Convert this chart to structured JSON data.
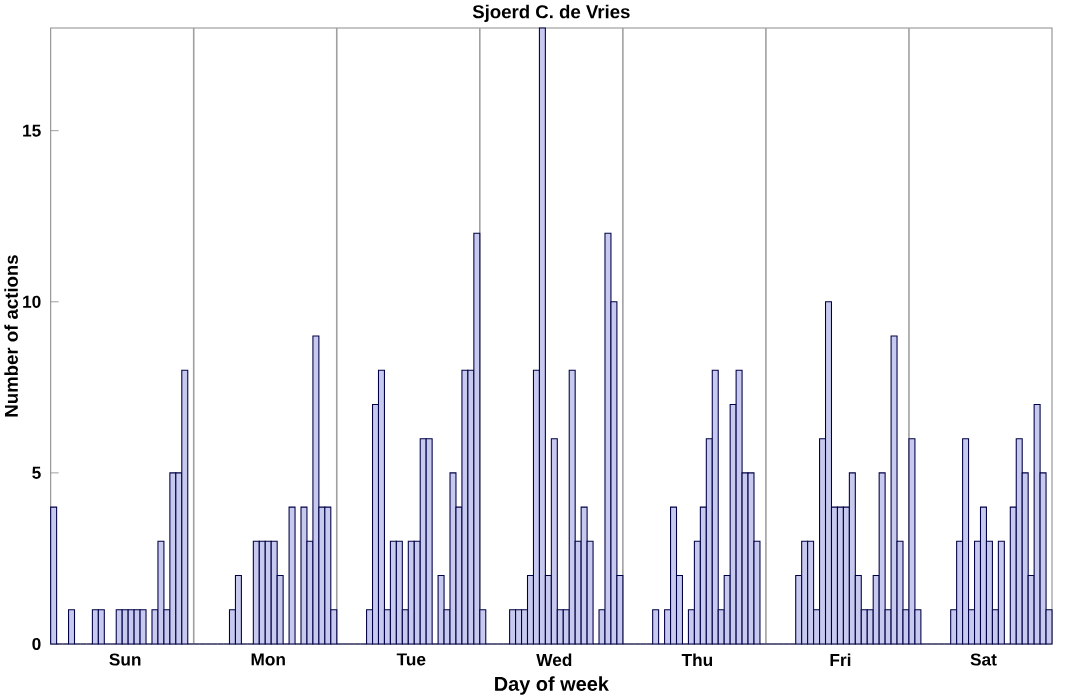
{
  "chart_data": {
    "type": "bar",
    "title": "Sjoerd C. de Vries",
    "xlabel": "Day of week",
    "ylabel": "Number of actions",
    "categories": [
      null,
      null,
      null,
      null,
      null,
      null,
      null,
      null,
      null,
      null,
      null,
      null,
      "Sun",
      null,
      null,
      null,
      null,
      null,
      null,
      null,
      null,
      null,
      null,
      null,
      null,
      null,
      null,
      null,
      null,
      null,
      null,
      null,
      null,
      null,
      null,
      null,
      "Mon",
      null,
      null,
      null,
      null,
      null,
      null,
      null,
      null,
      null,
      null,
      null,
      null,
      null,
      null,
      null,
      null,
      null,
      null,
      null,
      null,
      null,
      null,
      null,
      "Tue",
      null,
      null,
      null,
      null,
      null,
      null,
      null,
      null,
      null,
      null,
      null,
      null,
      null,
      null,
      null,
      null,
      null,
      null,
      null,
      null,
      null,
      null,
      null,
      "Wed",
      null,
      null,
      null,
      null,
      null,
      null,
      null,
      null,
      null,
      null,
      null,
      null,
      null,
      null,
      null,
      null,
      null,
      null,
      null,
      null,
      null,
      null,
      null,
      "Thu",
      null,
      null,
      null,
      null,
      null,
      null,
      null,
      null,
      null,
      null,
      null,
      null,
      null,
      null,
      null,
      null,
      null,
      null,
      null,
      null,
      null,
      null,
      null,
      "Fri",
      null,
      null,
      null,
      null,
      null,
      null,
      null,
      null,
      null,
      null,
      null,
      null,
      null,
      null,
      null,
      null,
      null,
      null,
      null,
      null,
      null,
      null,
      null,
      "Sat",
      null,
      null,
      null,
      null,
      null,
      null,
      null,
      null,
      null,
      null,
      null
    ],
    "values": [
      4,
      0,
      0,
      1,
      0,
      0,
      0,
      1,
      1,
      0,
      0,
      1,
      1,
      1,
      1,
      1,
      0,
      1,
      3,
      1,
      5,
      5,
      8,
      0,
      0,
      0,
      0,
      0,
      0,
      0,
      1,
      2,
      0,
      0,
      3,
      3,
      3,
      3,
      2,
      0,
      4,
      0,
      4,
      3,
      9,
      4,
      4,
      1,
      0,
      0,
      0,
      0,
      0,
      1,
      7,
      8,
      1,
      3,
      3,
      1,
      3,
      3,
      6,
      6,
      0,
      2,
      1,
      5,
      4,
      8,
      8,
      12,
      1,
      0,
      0,
      0,
      0,
      1,
      1,
      1,
      2,
      8,
      18,
      2,
      6,
      1,
      1,
      8,
      3,
      4,
      3,
      0,
      1,
      12,
      10,
      2,
      0,
      0,
      0,
      0,
      0,
      1,
      0,
      1,
      4,
      2,
      0,
      1,
      3,
      4,
      6,
      8,
      1,
      2,
      7,
      8,
      5,
      5,
      3,
      0,
      0,
      0,
      0,
      0,
      0,
      2,
      3,
      3,
      1,
      6,
      10,
      4,
      4,
      4,
      5,
      2,
      1,
      1,
      2,
      5,
      1,
      9,
      3,
      1,
      6,
      1,
      0,
      0,
      0,
      0,
      0,
      1,
      3,
      6,
      1,
      3,
      4,
      3,
      1,
      3,
      0,
      4,
      6,
      5,
      2,
      7,
      5,
      1
    ],
    "color": "#c8c9ee",
    "ylim": [
      0,
      18
    ],
    "yticks": [
      0,
      5,
      10,
      15
    ]
  }
}
